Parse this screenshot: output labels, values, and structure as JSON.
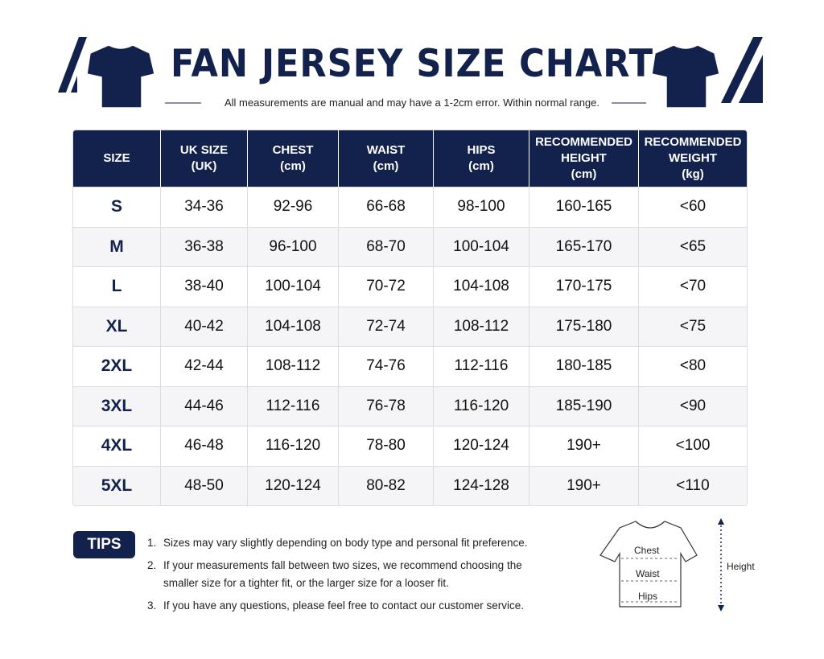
{
  "header": {
    "title": "FAN JERSEY SIZE CHART",
    "subtitle": "All measurements are manual and may have a 1-2cm error. Within normal range."
  },
  "table": {
    "headers": [
      [
        "SIZE"
      ],
      [
        "UK SIZE",
        "(UK)"
      ],
      [
        "CHEST",
        "(cm)"
      ],
      [
        "WAIST",
        "(cm)"
      ],
      [
        "HIPS",
        "(cm)"
      ],
      [
        "RECOMMENDED",
        "HEIGHT",
        "(cm)"
      ],
      [
        "RECOMMENDED",
        "WEIGHT",
        "(kg)"
      ]
    ],
    "rows": [
      [
        "S",
        "34-36",
        "92-96",
        "66-68",
        "98-100",
        "160-165",
        "<60"
      ],
      [
        "M",
        "36-38",
        "96-100",
        "68-70",
        "100-104",
        "165-170",
        "<65"
      ],
      [
        "L",
        "38-40",
        "100-104",
        "70-72",
        "104-108",
        "170-175",
        "<70"
      ],
      [
        "XL",
        "40-42",
        "104-108",
        "72-74",
        "108-112",
        "175-180",
        "<75"
      ],
      [
        "2XL",
        "42-44",
        "108-112",
        "74-76",
        "112-116",
        "180-185",
        "<80"
      ],
      [
        "3XL",
        "44-46",
        "112-116",
        "76-78",
        "116-120",
        "185-190",
        "<90"
      ],
      [
        "4XL",
        "46-48",
        "116-120",
        "78-80",
        "120-124",
        "190+",
        "<100"
      ],
      [
        "5XL",
        "48-50",
        "120-124",
        "80-82",
        "124-128",
        "190+",
        "<110"
      ]
    ]
  },
  "tips": {
    "label": "TIPS",
    "items": [
      {
        "number": "1.",
        "text": "Sizes may vary slightly depending on body type and personal fit preference."
      },
      {
        "number": "2.",
        "text": "If your measurements fall between two sizes, we recommend choosing the smaller size for a tighter fit, or the larger size for a looser fit."
      },
      {
        "number": "3.",
        "text": "If you have any questions, please feel free to contact our customer service."
      }
    ]
  },
  "diagram": {
    "chest": "Chest",
    "waist": "Waist",
    "hips": "Hips",
    "height": "Height"
  }
}
